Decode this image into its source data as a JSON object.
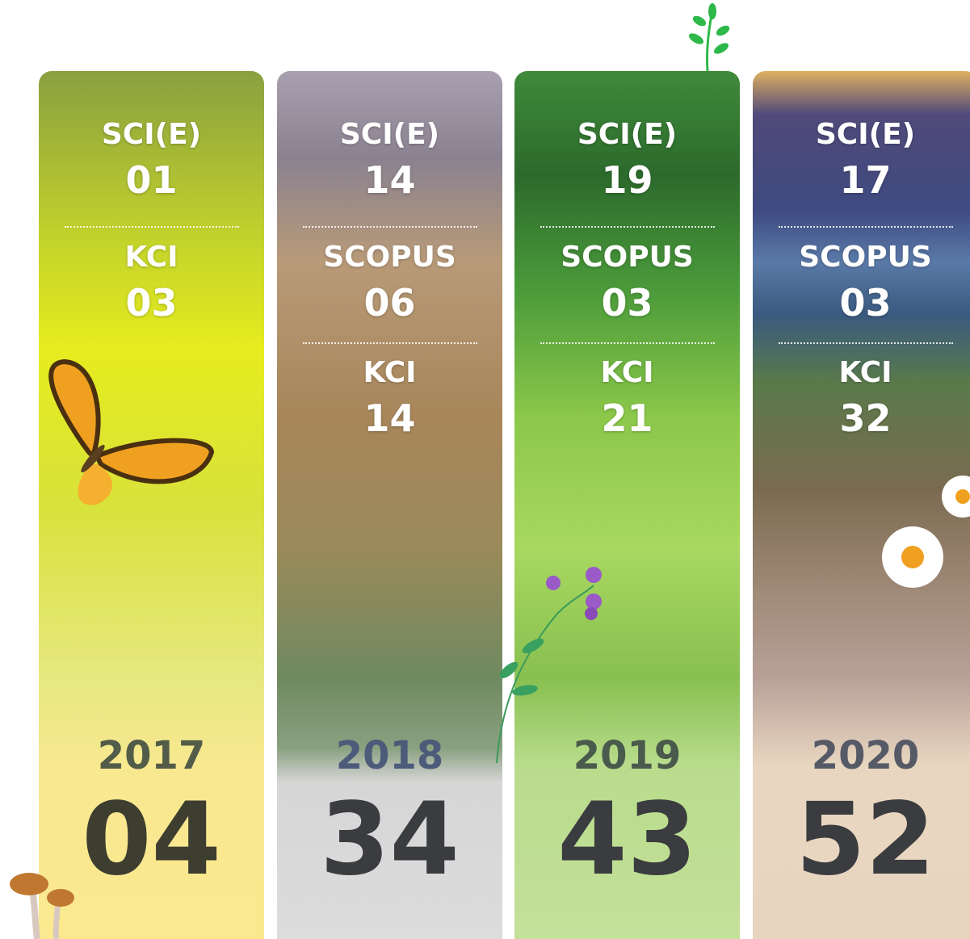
{
  "columns": [
    {
      "year": "2017",
      "total": "04",
      "items": [
        {
          "label": "SCI(E)",
          "count": "01"
        },
        {
          "label": "KCI",
          "count": "03"
        }
      ]
    },
    {
      "year": "2018",
      "total": "34",
      "items": [
        {
          "label": "SCI(E)",
          "count": "14"
        },
        {
          "label": "SCOPUS",
          "count": "06"
        },
        {
          "label": "KCI",
          "count": "14"
        }
      ]
    },
    {
      "year": "2019",
      "total": "43",
      "items": [
        {
          "label": "SCI(E)",
          "count": "19"
        },
        {
          "label": "SCOPUS",
          "count": "03"
        },
        {
          "label": "KCI",
          "count": "21"
        }
      ]
    },
    {
      "year": "2020",
      "total": "52",
      "items": [
        {
          "label": "SCI(E)",
          "count": "17"
        },
        {
          "label": "SCOPUS",
          "count": "03"
        },
        {
          "label": "KCI",
          "count": "32"
        }
      ]
    }
  ]
}
